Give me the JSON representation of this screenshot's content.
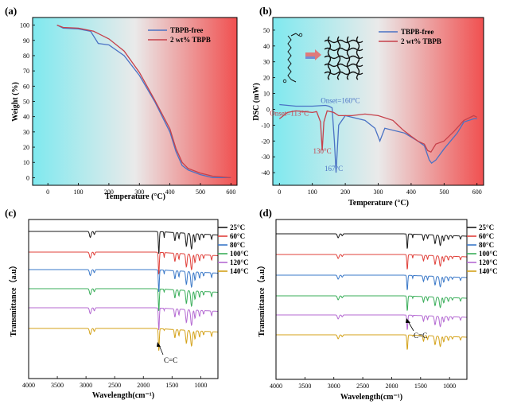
{
  "colors": {
    "blue": "#4a72c4",
    "red": "#c6414b",
    "gradient_left": "#7fe9ef",
    "gradient_mid": "#eaeaea",
    "gradient_right": "#f05050",
    "ftir": [
      "#1a1a1a",
      "#e0403a",
      "#3a78c8",
      "#3aae5a",
      "#b46ad2",
      "#d4a21a"
    ]
  },
  "chart_data": [
    {
      "panel": "(a)",
      "type": "line",
      "xlabel": "Temperature (°C)",
      "ylabel": "Weight (%)",
      "xlim": [
        -50,
        620
      ],
      "ylim": [
        -5,
        105
      ],
      "xticks": [
        "0",
        "100",
        "200",
        "300",
        "400",
        "500",
        "600"
      ],
      "yticks": [
        "0",
        "10",
        "20",
        "30",
        "40",
        "50",
        "60",
        "70",
        "80",
        "90",
        "100"
      ],
      "background": "gradient cyan-white-red",
      "legend_position": "top-right",
      "series": [
        {
          "name": "TBPB-free",
          "color": "blue",
          "x": [
            30,
            50,
            100,
            140,
            165,
            200,
            250,
            300,
            350,
            400,
            420,
            440,
            460,
            500,
            540,
            600
          ],
          "y": [
            100,
            98,
            97.5,
            96,
            88,
            87,
            80,
            67,
            50,
            30,
            17,
            8,
            5,
            2,
            0,
            0
          ]
        },
        {
          "name": "2 wt% TBPB",
          "color": "red",
          "x": [
            30,
            50,
            100,
            150,
            200,
            250,
            300,
            350,
            400,
            420,
            440,
            460,
            500,
            540,
            600
          ],
          "y": [
            100,
            98.5,
            98,
            96,
            91,
            83,
            69,
            51,
            32,
            19,
            10,
            6,
            3,
            1,
            0
          ]
        }
      ]
    },
    {
      "panel": "(b)",
      "type": "line",
      "xlabel": "Temperature (°C)",
      "ylabel": "DSC (mW)",
      "xlim": [
        -20,
        620
      ],
      "ylim": [
        -48,
        58
      ],
      "xticks": [
        "0",
        "100",
        "200",
        "300",
        "400",
        "500",
        "600"
      ],
      "yticks": [
        "-40",
        "-30",
        "-20",
        "-10",
        "0",
        "10",
        "20",
        "30",
        "40",
        "50"
      ],
      "background": "gradient cyan-white-red",
      "legend_position": "top-right",
      "annotations": [
        {
          "text": "Onset=160°C",
          "color": "blue",
          "x": 185,
          "y": 4
        },
        {
          "text": "Onset=113°C",
          "color": "red",
          "x": 30,
          "y": -4
        },
        {
          "text": "130°C",
          "color": "red",
          "x": 130,
          "y": -28
        },
        {
          "text": "167°C",
          "color": "blue",
          "x": 165,
          "y": -39
        }
      ],
      "series": [
        {
          "name": "TBPB-free",
          "color": "blue",
          "x": [
            0,
            50,
            100,
            140,
            150,
            160,
            167,
            172,
            180,
            200,
            260,
            290,
            305,
            320,
            380,
            420,
            440,
            455,
            462,
            475,
            500,
            540,
            560,
            590,
            600
          ],
          "y": [
            3,
            2,
            2,
            2.5,
            2,
            1,
            -20,
            -40,
            -10,
            -4,
            -7,
            -12,
            -20,
            -12,
            -15,
            -20,
            -23,
            -32,
            -34,
            -32,
            -25,
            -15,
            -8,
            -6,
            -6
          ]
        },
        {
          "name": "2 wt% TBPB",
          "color": "red",
          "x": [
            0,
            25,
            50,
            100,
            113,
            125,
            130,
            135,
            145,
            165,
            180,
            220,
            260,
            300,
            345,
            360,
            375,
            400,
            420,
            440,
            450,
            460,
            475,
            500,
            530,
            560,
            590,
            600
          ],
          "y": [
            -6,
            -2,
            -1,
            -2,
            -1.5,
            -8,
            -26,
            -8,
            -1,
            -2,
            -4,
            -4,
            -3,
            -4,
            -7,
            -10,
            -13,
            -17,
            -20,
            -22,
            -26,
            -27,
            -22,
            -20,
            -14,
            -7,
            -4,
            -5
          ]
        }
      ]
    },
    {
      "panel": "(c)",
      "type": "line",
      "xlabel": "Wavelength(cm⁻¹)",
      "ylabel": "Transmittance（a.u）",
      "xlim": [
        4000,
        700
      ],
      "xticks": [
        "4000",
        "3500",
        "3000",
        "2500",
        "2000",
        "1500",
        "1000"
      ],
      "legend_position": "right",
      "annotation": "C=C",
      "series": [
        {
          "name": "25°C"
        },
        {
          "name": "60°C"
        },
        {
          "name": "80°C"
        },
        {
          "name": "100°C"
        },
        {
          "name": "120°C"
        },
        {
          "name": "140°C"
        }
      ]
    },
    {
      "panel": "(d)",
      "type": "line",
      "xlabel": "Wavelength(cm⁻¹)",
      "ylabel": "Transmittance（a.u）",
      "xlim": [
        4000,
        700
      ],
      "xticks": [
        "4000",
        "3500",
        "3000",
        "2500",
        "2000",
        "1500",
        "1000"
      ],
      "legend_position": "right",
      "annotation": "C=C",
      "series": [
        {
          "name": "25°C"
        },
        {
          "name": "60°C"
        },
        {
          "name": "80°C"
        },
        {
          "name": "100°C"
        },
        {
          "name": "120°C"
        },
        {
          "name": "140°C"
        }
      ]
    }
  ]
}
